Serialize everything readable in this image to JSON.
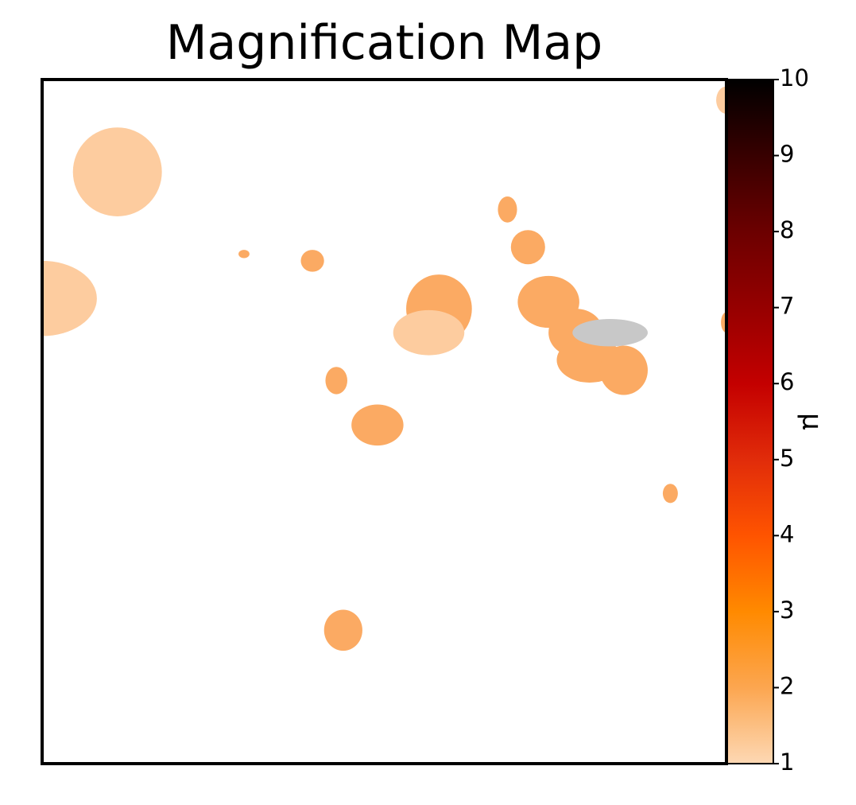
{
  "chart_data": {
    "type": "heatmap",
    "title": "Magnification Map",
    "xlabel": "",
    "ylabel": "",
    "colorbar": {
      "label": "μ",
      "range": [
        1,
        10
      ],
      "ticks": [
        "1",
        "2",
        "3",
        "4",
        "5",
        "6",
        "7",
        "8",
        "9",
        "10"
      ],
      "colormap": "gist_heat_r"
    },
    "background_color": "#ffffff",
    "colors": {
      "level_1": "#fdcc9f",
      "level_2": "#fbaa63",
      "saturated": "#c8c8c8"
    },
    "regions": [
      {
        "name": "blob-top-left",
        "level": 1.15,
        "cx": 0.11,
        "cy": 0.135,
        "rx": 0.065,
        "ry": 0.065
      },
      {
        "name": "blob-left-edge",
        "level": 1.15,
        "cx": 0.0,
        "cy": 0.32,
        "rx": 0.08,
        "ry": 0.055
      },
      {
        "name": "blob-top-right-edge",
        "level": 1.15,
        "cx": 1.0,
        "cy": 0.03,
        "rx": 0.015,
        "ry": 0.02
      },
      {
        "name": "dot-small-1",
        "level": 1.8,
        "cx": 0.295,
        "cy": 0.255,
        "rx": 0.008,
        "ry": 0.006
      },
      {
        "name": "blob-small-2",
        "level": 1.8,
        "cx": 0.395,
        "cy": 0.265,
        "rx": 0.017,
        "ry": 0.016
      },
      {
        "name": "blob-center-upper",
        "level": 1.8,
        "cx": 0.58,
        "cy": 0.335,
        "rx": 0.048,
        "ry": 0.05
      },
      {
        "name": "blob-center-inner",
        "level": 1.15,
        "cx": 0.565,
        "cy": 0.37,
        "rx": 0.052,
        "ry": 0.033
      },
      {
        "name": "blob-small-3",
        "level": 1.8,
        "cx": 0.68,
        "cy": 0.19,
        "rx": 0.014,
        "ry": 0.019
      },
      {
        "name": "blob-small-4",
        "level": 1.8,
        "cx": 0.71,
        "cy": 0.245,
        "rx": 0.025,
        "ry": 0.025
      },
      {
        "name": "blob-right-a",
        "level": 1.8,
        "cx": 0.74,
        "cy": 0.325,
        "rx": 0.045,
        "ry": 0.038
      },
      {
        "name": "blob-right-b",
        "level": 1.8,
        "cx": 0.78,
        "cy": 0.37,
        "rx": 0.04,
        "ry": 0.035
      },
      {
        "name": "blob-right-c",
        "level": 1.8,
        "cx": 0.8,
        "cy": 0.41,
        "rx": 0.048,
        "ry": 0.033
      },
      {
        "name": "blob-right-d",
        "level": 1.8,
        "cx": 0.85,
        "cy": 0.425,
        "rx": 0.035,
        "ry": 0.036
      },
      {
        "name": "saturated-caustic",
        "level": 10,
        "cx": 0.83,
        "cy": 0.37,
        "rx": 0.055,
        "ry": 0.02
      },
      {
        "name": "blob-right-edge",
        "level": 1.8,
        "cx": 1.0,
        "cy": 0.355,
        "rx": 0.008,
        "ry": 0.015
      },
      {
        "name": "blob-small-5",
        "level": 1.8,
        "cx": 0.43,
        "cy": 0.44,
        "rx": 0.016,
        "ry": 0.02
      },
      {
        "name": "blob-mid-1",
        "level": 1.8,
        "cx": 0.49,
        "cy": 0.505,
        "rx": 0.038,
        "ry": 0.03
      },
      {
        "name": "blob-small-6",
        "level": 1.8,
        "cx": 0.918,
        "cy": 0.605,
        "rx": 0.011,
        "ry": 0.014
      },
      {
        "name": "blob-lower",
        "level": 1.8,
        "cx": 0.44,
        "cy": 0.805,
        "rx": 0.028,
        "ry": 0.03
      }
    ]
  }
}
